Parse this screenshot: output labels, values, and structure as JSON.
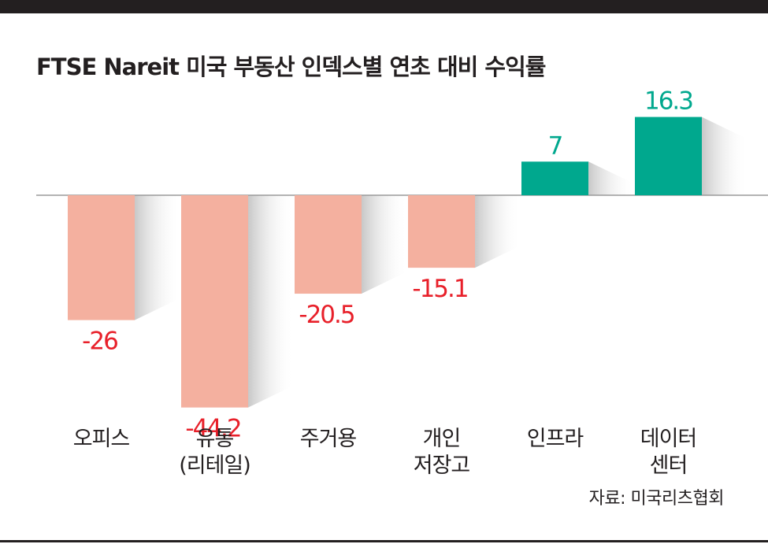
{
  "chart_data": {
    "type": "bar",
    "title": "FTSE Nareit 미국 부동산 인덱스별 연초 대비 수익률",
    "categories": [
      "오피스",
      "유통\n(리테일)",
      "주거용",
      "개인\n저장고",
      "인프라",
      "데이터\n센터"
    ],
    "values": [
      -26,
      -44.2,
      -20.5,
      -15.1,
      7,
      16.3
    ],
    "value_labels": [
      "-26",
      "-44.2",
      "-20.5",
      "-15.1",
      "7",
      "16.3"
    ],
    "xlabel": "",
    "ylabel": "",
    "grid": false,
    "colors": {
      "negative": "#f4b09f",
      "positive": "#00a88e",
      "negative_label": "#e8202a",
      "positive_label": "#00a88e",
      "axis": "#9a9a9a",
      "shadow": "#c8c8c8",
      "frame": "#231f20"
    }
  },
  "source": "자료: 미국리츠협회"
}
